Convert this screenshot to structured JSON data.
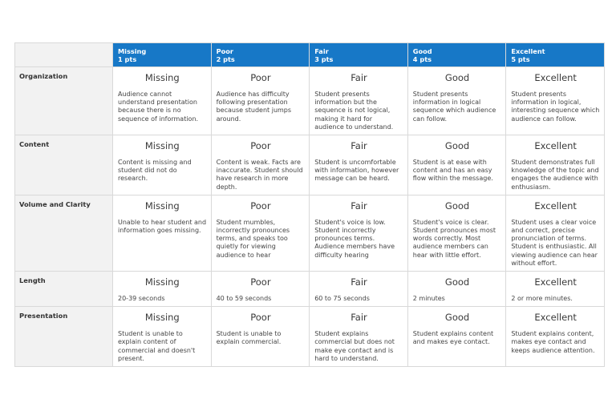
{
  "header": {
    "levels": [
      {
        "title": "Missing",
        "points": "1 pts"
      },
      {
        "title": "Poor",
        "points": "2 pts"
      },
      {
        "title": "Fair",
        "points": "3 pts"
      },
      {
        "title": "Good",
        "points": "4 pts"
      },
      {
        "title": "Excellent",
        "points": "5 pts"
      }
    ]
  },
  "rows": [
    {
      "criterion": "Organization",
      "cells": [
        {
          "rating": "Missing",
          "desc": "Audience cannot understand presentation because there is no sequence of information."
        },
        {
          "rating": "Poor",
          "desc": "Audience has difficulty following presentation because student jumps around."
        },
        {
          "rating": "Fair",
          "desc": "Student presents information but the sequence is not logical, making it hard for audience to understand."
        },
        {
          "rating": "Good",
          "desc": "Student presents information in logical sequence which audience can follow."
        },
        {
          "rating": "Excellent",
          "desc": "Student presents information in logical, interesting sequence which audience can follow."
        }
      ]
    },
    {
      "criterion": "Content",
      "cells": [
        {
          "rating": "Missing",
          "desc": "Content is missing and student did not do research."
        },
        {
          "rating": "Poor",
          "desc": "Content is weak. Facts are inaccurate. Student should have research in more depth."
        },
        {
          "rating": "Fair",
          "desc": "Student is uncomfortable with information, however message can be heard."
        },
        {
          "rating": "Good",
          "desc": "Student is at ease with content and has an easy flow within the message."
        },
        {
          "rating": "Excellent",
          "desc": "Student demonstrates full knowledge of the topic and engages the audience with enthusiasm."
        }
      ]
    },
    {
      "criterion": "Volume and Clarity",
      "cells": [
        {
          "rating": "Missing",
          "desc": "Unable to hear student and information goes missing."
        },
        {
          "rating": "Poor",
          "desc": "Student mumbles, incorrectly pronounces terms, and speaks too quietly for viewing audience to hear"
        },
        {
          "rating": "Fair",
          "desc": "Student's voice is low. Student incorrectly pronounces terms. Audience members have difficulty hearing"
        },
        {
          "rating": "Good",
          "desc": "Student's voice is clear. Student pronounces most words correctly. Most audience members can hear with little effort."
        },
        {
          "rating": "Excellent",
          "desc": "Student uses a clear voice and correct, precise pronunciation of terms. Student is enthusiastic. All viewing audience can hear without effort."
        }
      ]
    },
    {
      "criterion": "Length",
      "cells": [
        {
          "rating": "Missing",
          "desc": "20-39 seconds"
        },
        {
          "rating": "Poor",
          "desc": "40 to 59 seconds"
        },
        {
          "rating": "Fair",
          "desc": "60 to 75 seconds"
        },
        {
          "rating": "Good",
          "desc": "2 minutes"
        },
        {
          "rating": "Excellent",
          "desc": "2 or more minutes."
        }
      ]
    },
    {
      "criterion": "Presentation",
      "cells": [
        {
          "rating": "Missing",
          "desc": "Student is unable to explain content of commercial and doesn't present."
        },
        {
          "rating": "Poor",
          "desc": "Student is unable to explain commercial."
        },
        {
          "rating": "Fair",
          "desc": "Student explains commercial but does not make eye contact and is hard to understand."
        },
        {
          "rating": "Good",
          "desc": "Student explains content and makes eye contact."
        },
        {
          "rating": "Excellent",
          "desc": "Student explains content, makes eye contact and keeps audience attention."
        }
      ]
    }
  ],
  "colors": {
    "header_bg": "#1778c7",
    "criterion_bg": "#f2f2f2",
    "border": "#d9d9d9"
  }
}
